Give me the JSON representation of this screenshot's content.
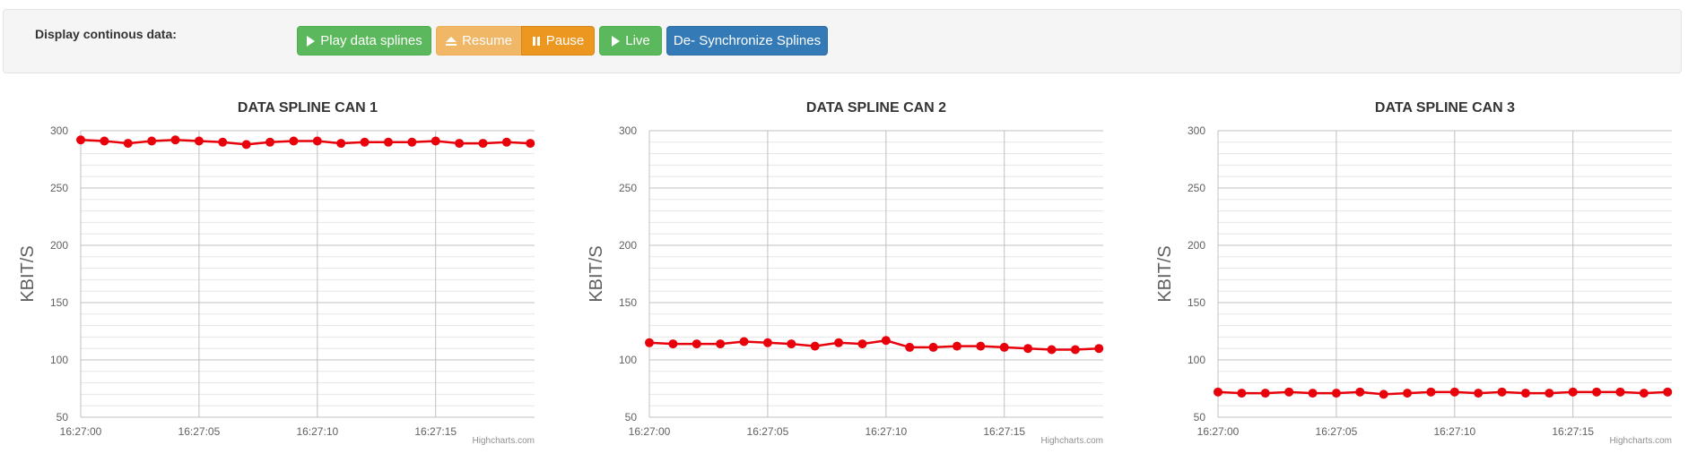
{
  "toolbar": {
    "label": "Display continous data:",
    "buttons": [
      "Play data splines",
      "Resume",
      "Pause",
      "Live",
      "De- Synchronize Splines"
    ]
  },
  "chart_data": [
    {
      "type": "line",
      "title": "DATA SPLINE CAN 1",
      "y_label": "KBIT/S",
      "credit": "Highcharts.com",
      "color": "#e8000b",
      "grid": true,
      "categories": [
        "16:27:00",
        null,
        null,
        null,
        null,
        "16:27:05",
        null,
        null,
        null,
        null,
        "16:27:10",
        null,
        null,
        null,
        null,
        "16:27:15",
        null,
        null,
        null,
        null
      ],
      "values": [
        292,
        291,
        289,
        291,
        292,
        291,
        290,
        288,
        290,
        291,
        291,
        289,
        290,
        290,
        290,
        291,
        289,
        289,
        290,
        289
      ],
      "ylim": [
        50,
        300
      ],
      "yticks": [
        50,
        100,
        150,
        200,
        250,
        300
      ]
    },
    {
      "type": "line",
      "title": "DATA SPLINE CAN 2",
      "y_label": "KBIT/S",
      "credit": "Highcharts.com",
      "color": "#e8000b",
      "grid": true,
      "categories": [
        "16:27:00",
        null,
        null,
        null,
        null,
        "16:27:05",
        null,
        null,
        null,
        null,
        "16:27:10",
        null,
        null,
        null,
        null,
        "16:27:15",
        null,
        null,
        null,
        null
      ],
      "values": [
        115,
        114,
        114,
        114,
        116,
        115,
        114,
        112,
        115,
        114,
        117,
        111,
        111,
        112,
        112,
        111,
        110,
        109,
        109,
        110
      ],
      "ylim": [
        50,
        300
      ],
      "yticks": [
        50,
        100,
        150,
        200,
        250,
        300
      ]
    },
    {
      "type": "line",
      "title": "DATA SPLINE CAN 3",
      "y_label": "KBIT/S",
      "credit": "Highcharts.com",
      "color": "#e8000b",
      "grid": true,
      "categories": [
        "16:27:00",
        null,
        null,
        null,
        null,
        "16:27:05",
        null,
        null,
        null,
        null,
        "16:27:10",
        null,
        null,
        null,
        null,
        "16:27:15",
        null,
        null,
        null,
        null
      ],
      "values": [
        72,
        71,
        71,
        72,
        71,
        71,
        72,
        70,
        71,
        72,
        72,
        71,
        72,
        71,
        71,
        72,
        72,
        72,
        71,
        72
      ],
      "ylim": [
        50,
        300
      ],
      "yticks": [
        50,
        100,
        150,
        200,
        250,
        300
      ]
    }
  ]
}
